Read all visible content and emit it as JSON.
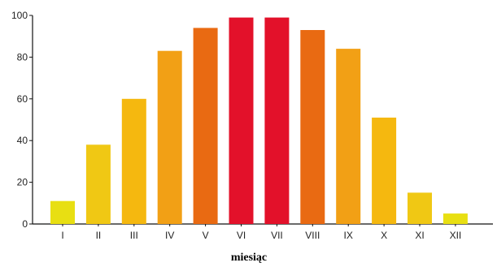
{
  "chart_data": {
    "type": "bar",
    "categories": [
      "I",
      "II",
      "III",
      "IV",
      "V",
      "VI",
      "VII",
      "VIII",
      "IX",
      "X",
      "XI",
      "XII"
    ],
    "values": [
      11,
      38,
      60,
      83,
      94,
      99,
      99,
      93,
      84,
      51,
      15,
      5
    ],
    "colors": [
      "#e8df12",
      "#f0c814",
      "#f5b80f",
      "#f2a015",
      "#e96a12",
      "#e3112a",
      "#e3112a",
      "#e96a12",
      "#f2a015",
      "#f5b80f",
      "#f0c814",
      "#e8df12"
    ],
    "title": "",
    "xlabel": "miesiąc",
    "ylabel": "",
    "ylim": [
      0,
      100
    ],
    "yticks": [
      0,
      20,
      40,
      60,
      80,
      100
    ],
    "grid": false,
    "legend": "none"
  }
}
